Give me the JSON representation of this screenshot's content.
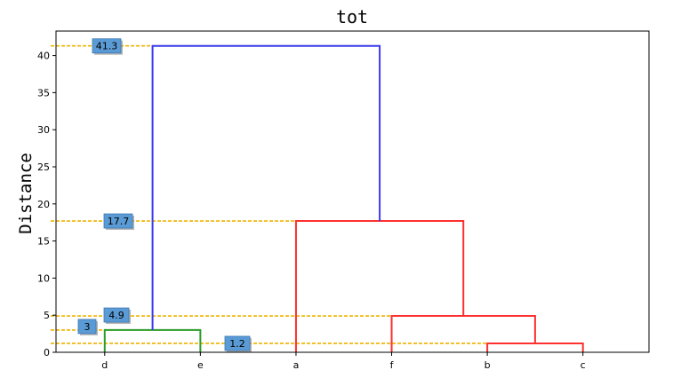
{
  "chart_data": {
    "type": "dendrogram",
    "title": "tot",
    "ylabel": "Distance",
    "xlabel": "",
    "ylim": [
      0,
      43.3
    ],
    "yticks": [
      0,
      5,
      10,
      15,
      20,
      25,
      30,
      35,
      40
    ],
    "leaves": [
      "d",
      "e",
      "a",
      "f",
      "b",
      "c"
    ],
    "links": [
      {
        "id": "d-e",
        "height": 3,
        "color": "#2a9d2a",
        "left": {
          "leaf": "d"
        },
        "right": {
          "leaf": "e"
        }
      },
      {
        "id": "b-c",
        "height": 1.2,
        "color": "#ff3030",
        "left": {
          "leaf": "b"
        },
        "right": {
          "leaf": "c"
        }
      },
      {
        "id": "f-bc",
        "height": 4.9,
        "color": "#ff3030",
        "left": {
          "leaf": "f"
        },
        "right": {
          "link": "b-c"
        }
      },
      {
        "id": "a-fbc",
        "height": 17.7,
        "color": "#ff3030",
        "left": {
          "leaf": "a"
        },
        "right": {
          "link": "f-bc"
        }
      },
      {
        "id": "root",
        "height": 41.3,
        "color": "#3a3af0",
        "left": {
          "link": "d-e"
        },
        "right": {
          "link": "a-fbc"
        }
      }
    ],
    "annotations": [
      {
        "label": "41.3",
        "value": 41.3
      },
      {
        "label": "17.7",
        "value": 17.7
      },
      {
        "label": "4.9",
        "value": 4.9
      },
      {
        "label": "3",
        "value": 3
      },
      {
        "label": "1.2",
        "value": 1.2
      }
    ],
    "colors": {
      "guide": "#f0b400",
      "badge_fill": "#5b9bd5",
      "badge_border": "#3a78b5"
    }
  }
}
